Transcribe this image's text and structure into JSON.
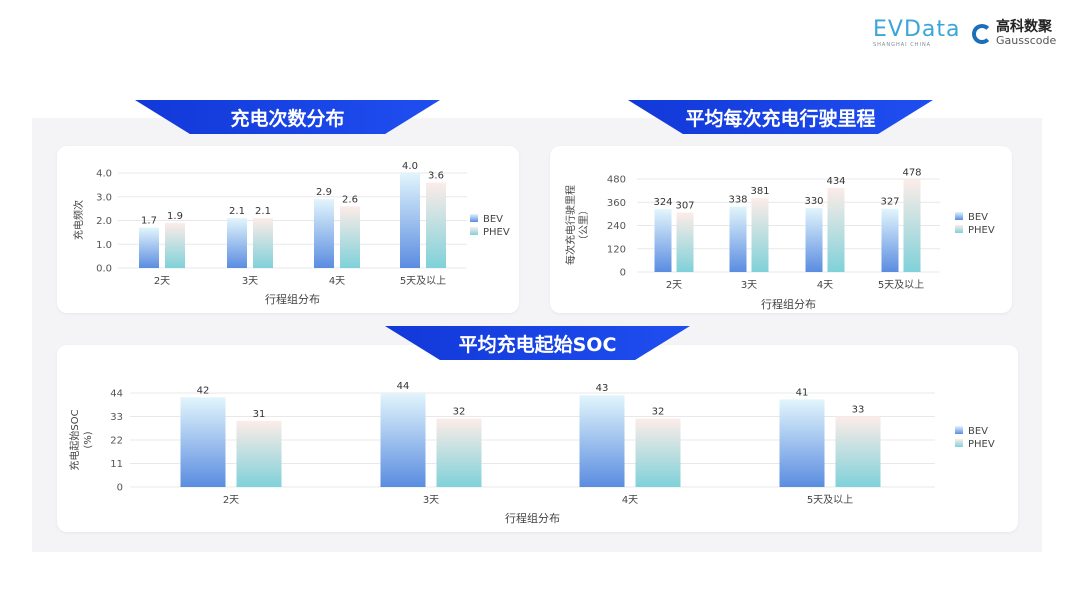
{
  "logos": {
    "evdata": "EVData",
    "evdata_sub": "SHANGHAI CHINA",
    "gauss_cn": "高科数聚",
    "gauss_en": "Gausscode"
  },
  "colors": {
    "bev_top": "#e2f5fc",
    "bev_bottom": "#5a8ce0",
    "phev_top": "#fcece8",
    "phev_bottom": "#7fd1d9",
    "banner": "#1a44e6"
  },
  "chart_data": [
    {
      "type": "bar",
      "title": "充电次数分布",
      "xlabel": "行程组分布",
      "ylabel": "充电频次",
      "categories": [
        "2天",
        "3天",
        "4天",
        "5天及以上"
      ],
      "ylim": [
        0,
        4.0
      ],
      "yticks": [
        "0.0",
        "1.0",
        "2.0",
        "3.0",
        "4.0"
      ],
      "grid": true,
      "legend": "right",
      "series": [
        {
          "name": "BEV",
          "values": [
            1.7,
            2.1,
            2.9,
            4.0
          ],
          "labels": [
            "1.7",
            "2.1",
            "2.9",
            "4.0"
          ]
        },
        {
          "name": "PHEV",
          "values": [
            1.9,
            2.1,
            2.6,
            3.6
          ],
          "labels": [
            "1.9",
            "2.1",
            "2.6",
            "3.6"
          ]
        }
      ]
    },
    {
      "type": "bar",
      "title": "平均每次充电行驶里程",
      "xlabel": "行程组分布",
      "ylabel": "每次充电行驶里程",
      "ylabel2": "（公里）",
      "categories": [
        "2天",
        "3天",
        "4天",
        "5天及以上"
      ],
      "ylim": [
        0,
        480
      ],
      "yticks": [
        "0",
        "120",
        "240",
        "360",
        "480"
      ],
      "grid": true,
      "legend": "right",
      "series": [
        {
          "name": "BEV",
          "values": [
            324,
            338,
            330,
            327
          ],
          "labels": [
            "324",
            "338",
            "330",
            "327"
          ]
        },
        {
          "name": "PHEV",
          "values": [
            307,
            381,
            434,
            478
          ],
          "labels": [
            "307",
            "381",
            "434",
            "478"
          ]
        }
      ]
    },
    {
      "type": "bar",
      "title": "平均充电起始SOC",
      "xlabel": "行程组分布",
      "ylabel": "充电起始SOC",
      "ylabel2": "(%)",
      "categories": [
        "2天",
        "3天",
        "4天",
        "5天及以上"
      ],
      "ylim": [
        0,
        44
      ],
      "yticks": [
        "0",
        "11",
        "22",
        "33",
        "44"
      ],
      "grid": true,
      "legend": "right",
      "series": [
        {
          "name": "BEV",
          "values": [
            42,
            44,
            43,
            41
          ],
          "labels": [
            "42",
            "44",
            "43",
            "41"
          ]
        },
        {
          "name": "PHEV",
          "values": [
            31,
            32,
            32,
            33
          ],
          "labels": [
            "31",
            "32",
            "32",
            "33"
          ]
        }
      ]
    }
  ]
}
